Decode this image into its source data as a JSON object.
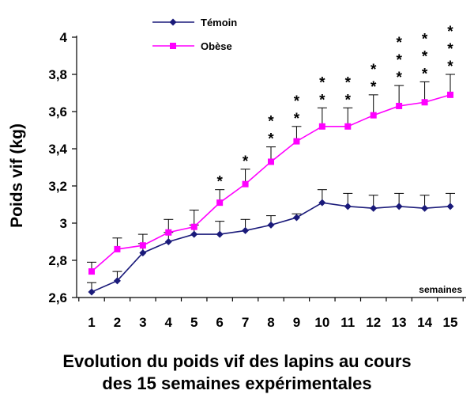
{
  "chart_data": {
    "type": "line",
    "title": "Evolution du poids vif des lapins au cours",
    "title_line2": "des 15 semaines expérimentales",
    "xlabel": "semaines",
    "ylabel": "Poids vif (kg)",
    "categories": [
      "1",
      "2",
      "3",
      "4",
      "5",
      "6",
      "7",
      "8",
      "9",
      "10",
      "11",
      "12",
      "13",
      "14",
      "15"
    ],
    "ylim": [
      2.6,
      4.0
    ],
    "yticks": [
      "2,6",
      "2,8",
      "3",
      "3,2",
      "3,4",
      "3,6",
      "3,8",
      "4"
    ],
    "ytick_values": [
      2.6,
      2.8,
      3.0,
      3.2,
      3.4,
      3.6,
      3.8,
      4.0
    ],
    "grid": false,
    "legend_position": "top-left",
    "series": [
      {
        "name": "Témoin",
        "color": "#1a1a7a",
        "marker": "diamond",
        "values": [
          2.63,
          2.69,
          2.84,
          2.9,
          2.94,
          2.94,
          2.96,
          2.99,
          3.03,
          3.11,
          3.09,
          3.08,
          3.09,
          3.08,
          3.09
        ],
        "error": [
          0.05,
          0.05,
          0.05,
          0.05,
          0.05,
          0.07,
          0.06,
          0.05,
          0.02,
          0.07,
          0.07,
          0.07,
          0.07,
          0.07,
          0.07
        ]
      },
      {
        "name": "Obèse",
        "color": "#ff00ff",
        "marker": "square",
        "values": [
          2.74,
          2.86,
          2.88,
          2.95,
          2.98,
          3.11,
          3.21,
          3.33,
          3.44,
          3.52,
          3.52,
          3.58,
          3.63,
          3.65,
          3.69
        ],
        "error": [
          0.05,
          0.06,
          0.06,
          0.07,
          0.09,
          0.07,
          0.08,
          0.08,
          0.08,
          0.1,
          0.1,
          0.11,
          0.11,
          0.11,
          0.11
        ]
      }
    ],
    "significance": [
      {
        "week": "6",
        "label": "*"
      },
      {
        "week": "7",
        "label": "*"
      },
      {
        "week": "8",
        "label": "**"
      },
      {
        "week": "9",
        "label": "**"
      },
      {
        "week": "10",
        "label": "**"
      },
      {
        "week": "11",
        "label": "**"
      },
      {
        "week": "12",
        "label": "**"
      },
      {
        "week": "13",
        "label": "***"
      },
      {
        "week": "14",
        "label": "***"
      },
      {
        "week": "15",
        "label": "***"
      }
    ]
  }
}
